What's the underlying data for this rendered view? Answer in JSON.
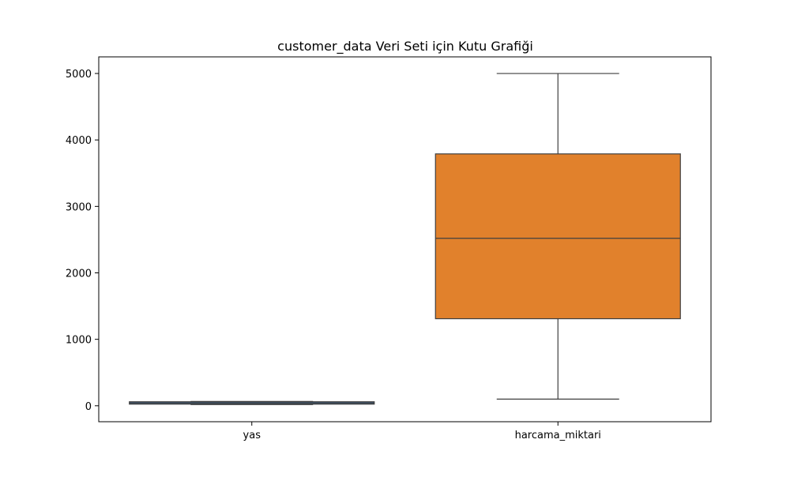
{
  "chart_data": {
    "type": "box",
    "title": "customer_data Veri Seti için Kutu Grafiği",
    "xlabel": "",
    "ylabel": "",
    "ylim": [
      -240,
      5250
    ],
    "yticks": [
      0,
      1000,
      2000,
      3000,
      4000,
      5000
    ],
    "grid": false,
    "categories": [
      "yas",
      "harcama_miktari"
    ],
    "boxes": [
      {
        "category": "yas",
        "whisker_low": 18,
        "q1": 30,
        "median": 42,
        "q3": 55,
        "whisker_high": 65,
        "color": "#3b75af"
      },
      {
        "category": "harcama_miktari",
        "whisker_low": 100,
        "q1": 1310,
        "median": 2520,
        "q3": 3790,
        "whisker_high": 5000,
        "color": "#e1812c"
      }
    ],
    "line_color": "#3f3f3f"
  }
}
